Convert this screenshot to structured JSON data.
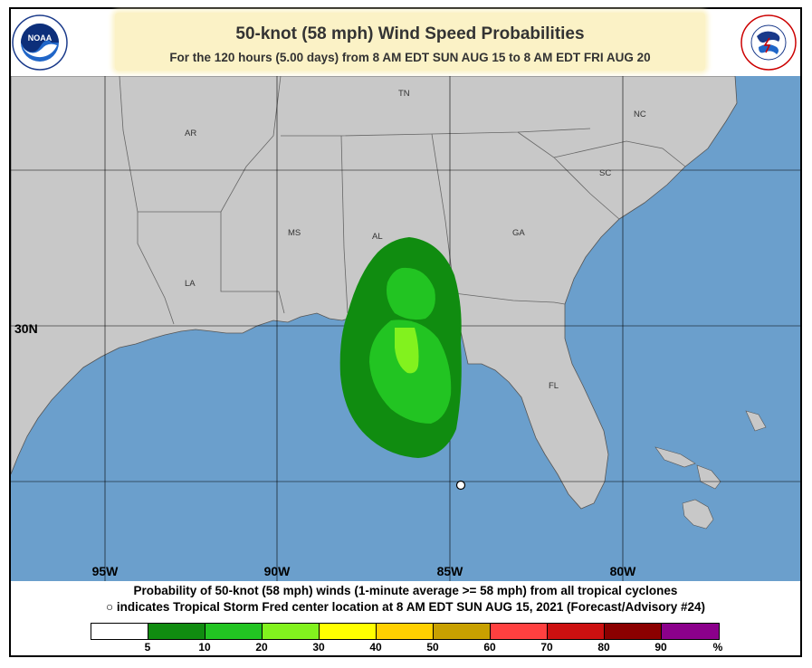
{
  "header": {
    "title": "50-knot (58 mph) Wind Speed Probabilities",
    "subtitle": "For the 120 hours (5.00 days) from 8 AM EDT SUN AUG 15 to 8 AM EDT FRI AUG 20"
  },
  "logos": {
    "left": "noaa-logo",
    "left_text": "NOAA",
    "left_ring_text": "NATIONAL OCEANIC AND ATMOSPHERIC ADMINISTRATION · U.S. DEPARTMENT OF COMMERCE",
    "right": "nws-logo",
    "right_ring_text": "NATIONAL WEATHER SERVICE"
  },
  "map": {
    "colors": {
      "land": "#c8c8c8",
      "water": "#6b9fcc",
      "borders": "#666666",
      "grid": "#000000"
    },
    "state_labels": [
      "TN",
      "NC",
      "AR",
      "SC",
      "MS",
      "AL",
      "GA",
      "LA",
      "FL"
    ],
    "lat_labels": [
      "30N"
    ],
    "lon_labels": [
      "95W",
      "90W",
      "85W",
      "80W"
    ],
    "storm_marker": "storm-center-marker"
  },
  "caption": {
    "line1": "Probability of 50-knot (58 mph) winds (1-minute average >= 58 mph) from all tropical cyclones",
    "marker_symbol": "○",
    "line2": "indicates Tropical Storm Fred center location at 8 AM EDT SUN AUG 15, 2021 (Forecast/Advisory #24)"
  },
  "legend": {
    "colors": [
      "#ffffff",
      "#108c10",
      "#22c422",
      "#82f21e",
      "#ffff00",
      "#ffd000",
      "#c8a000",
      "#ff4040",
      "#cc1010",
      "#8b0000",
      "#8b008b"
    ],
    "labels": [
      "5",
      "10",
      "20",
      "30",
      "40",
      "50",
      "60",
      "70",
      "80",
      "90",
      "%"
    ]
  }
}
